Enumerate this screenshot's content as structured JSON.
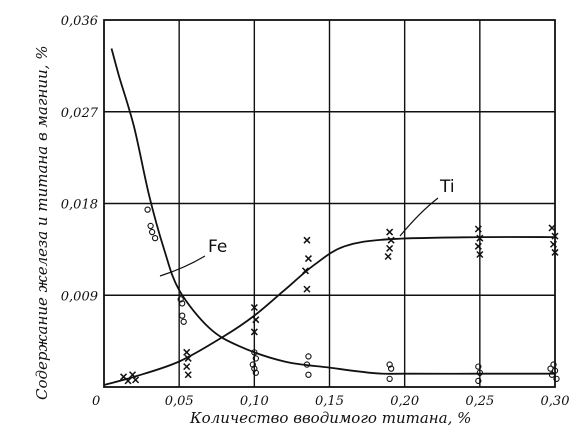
{
  "chart_data": {
    "type": "scatter",
    "title": "",
    "xlabel": "Количество вводимого титана, %",
    "ylabel": "Содержание железа и титана в магнии, %",
    "xlim": [
      0,
      0.3
    ],
    "ylim": [
      0,
      0.036
    ],
    "grid": true,
    "x_ticks": [
      {
        "value": 0.05,
        "label": "0,05"
      },
      {
        "value": 0.1,
        "label": "0,10"
      },
      {
        "value": 0.15,
        "label": "0,15"
      },
      {
        "value": 0.2,
        "label": "0,20"
      },
      {
        "value": 0.25,
        "label": "0,25"
      },
      {
        "value": 0.3,
        "label": "0,30"
      }
    ],
    "y_ticks": [
      {
        "value": 0.009,
        "label": "0,009"
      },
      {
        "value": 0.018,
        "label": "0,018"
      },
      {
        "value": 0.027,
        "label": "0,027"
      },
      {
        "value": 0.036,
        "label": "0,036"
      }
    ],
    "origin_label": "0",
    "series": [
      {
        "name": "Fe",
        "marker": "circle",
        "curve": [
          [
            0.005,
            0.0332
          ],
          [
            0.01,
            0.0305
          ],
          [
            0.02,
            0.0255
          ],
          [
            0.03,
            0.0188
          ],
          [
            0.04,
            0.0135
          ],
          [
            0.05,
            0.0095
          ],
          [
            0.07,
            0.0058
          ],
          [
            0.09,
            0.004
          ],
          [
            0.12,
            0.0025
          ],
          [
            0.15,
            0.0019
          ],
          [
            0.18,
            0.00135
          ],
          [
            0.2,
            0.0013
          ],
          [
            0.25,
            0.0013
          ],
          [
            0.3,
            0.0013
          ]
        ],
        "points": [
          [
            0.029,
            0.0174
          ],
          [
            0.031,
            0.0158
          ],
          [
            0.032,
            0.0152
          ],
          [
            0.034,
            0.0146
          ],
          [
            0.051,
            0.0086
          ],
          [
            0.052,
            0.0082
          ],
          [
            0.052,
            0.007
          ],
          [
            0.053,
            0.0064
          ],
          [
            0.1,
            0.0034
          ],
          [
            0.101,
            0.0028
          ],
          [
            0.099,
            0.0022
          ],
          [
            0.1,
            0.0018
          ],
          [
            0.101,
            0.0014
          ],
          [
            0.136,
            0.003
          ],
          [
            0.135,
            0.0022
          ],
          [
            0.136,
            0.0012
          ],
          [
            0.19,
            0.0022
          ],
          [
            0.191,
            0.0018
          ],
          [
            0.19,
            0.0008
          ],
          [
            0.249,
            0.002
          ],
          [
            0.25,
            0.0014
          ],
          [
            0.249,
            0.0006
          ],
          [
            0.297,
            0.0018
          ],
          [
            0.299,
            0.0022
          ],
          [
            0.298,
            0.0012
          ],
          [
            0.301,
            0.0008
          ],
          [
            0.3,
            0.0016
          ]
        ]
      },
      {
        "name": "Ti",
        "marker": "cross",
        "curve": [
          [
            0.0,
            0.0002
          ],
          [
            0.02,
            0.001
          ],
          [
            0.05,
            0.0025
          ],
          [
            0.08,
            0.005
          ],
          [
            0.1,
            0.007
          ],
          [
            0.12,
            0.0095
          ],
          [
            0.14,
            0.012
          ],
          [
            0.16,
            0.0138
          ],
          [
            0.19,
            0.0145
          ],
          [
            0.25,
            0.0147
          ],
          [
            0.3,
            0.0147
          ]
        ],
        "points": [
          [
            0.013,
            0.001
          ],
          [
            0.016,
            0.0006
          ],
          [
            0.019,
            0.0012
          ],
          [
            0.021,
            0.0007
          ],
          [
            0.055,
            0.0034
          ],
          [
            0.056,
            0.0028
          ],
          [
            0.055,
            0.002
          ],
          [
            0.056,
            0.0012
          ],
          [
            0.1,
            0.0078
          ],
          [
            0.101,
            0.0066
          ],
          [
            0.1,
            0.0054
          ],
          [
            0.135,
            0.0144
          ],
          [
            0.136,
            0.0126
          ],
          [
            0.134,
            0.0114
          ],
          [
            0.135,
            0.0096
          ],
          [
            0.19,
            0.0152
          ],
          [
            0.191,
            0.0144
          ],
          [
            0.19,
            0.0136
          ],
          [
            0.189,
            0.0128
          ],
          [
            0.249,
            0.0155
          ],
          [
            0.25,
            0.0146
          ],
          [
            0.249,
            0.0138
          ],
          [
            0.25,
            0.013
          ],
          [
            0.298,
            0.0156
          ],
          [
            0.3,
            0.0148
          ],
          [
            0.299,
            0.014
          ],
          [
            0.3,
            0.0132
          ]
        ]
      }
    ]
  }
}
